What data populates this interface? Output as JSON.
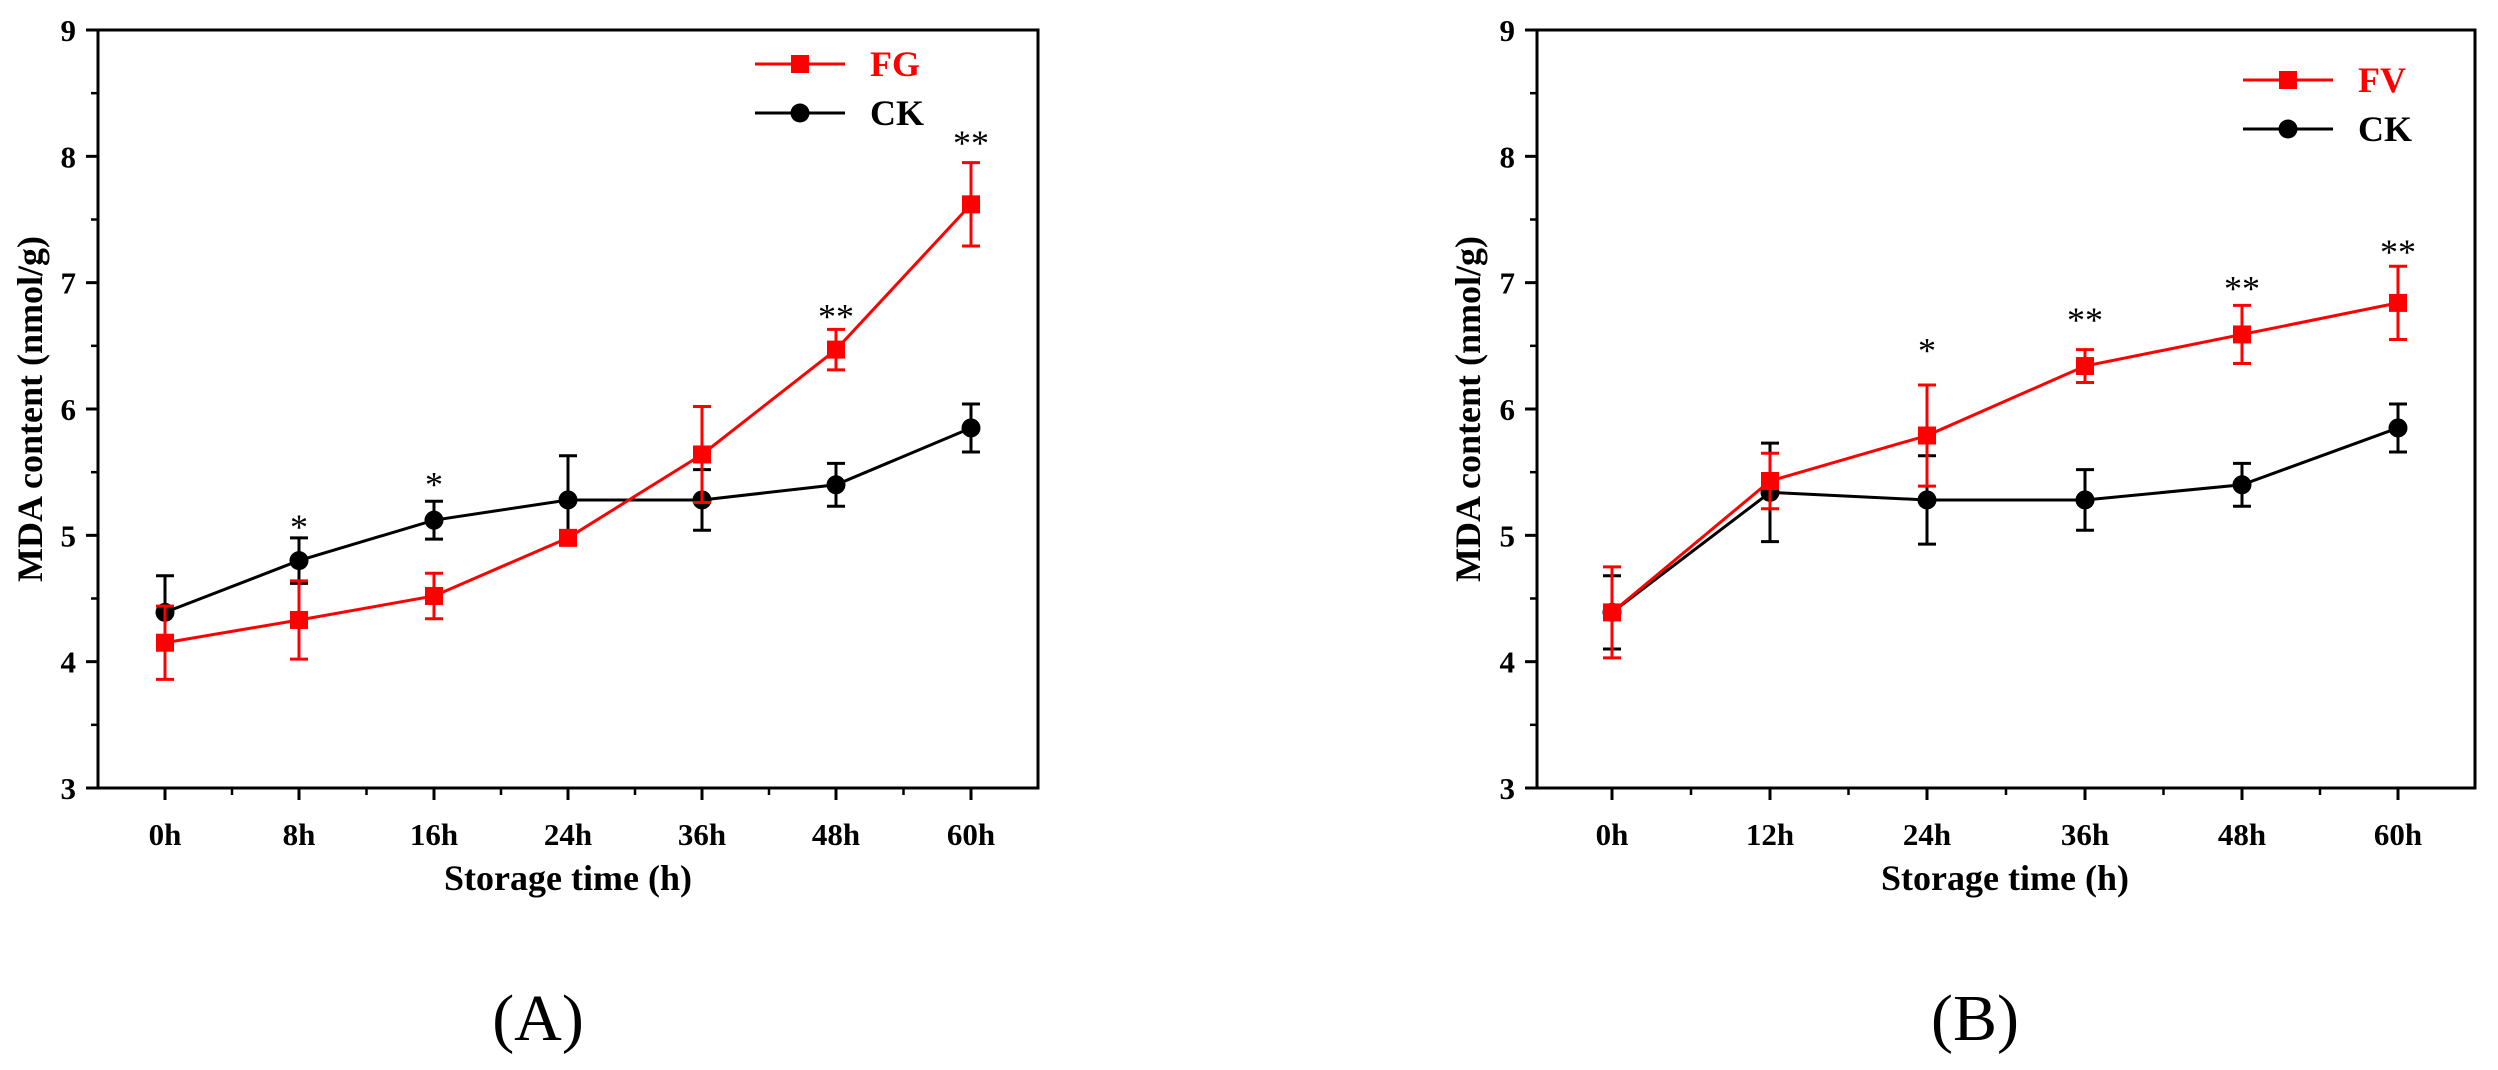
{
  "chart_data": [
    {
      "type": "line",
      "panel_label": "(A)",
      "xlabel": "Storage time (h)",
      "ylabel": "MDA content (nmol/g)",
      "ylim": [
        3,
        9
      ],
      "yticks": [
        "3",
        "4",
        "5",
        "6",
        "7",
        "8",
        "9"
      ],
      "categories": [
        "0h",
        "8h",
        "16h",
        "24h",
        "36h",
        "48h",
        "60h"
      ],
      "legend_position": "top-right",
      "series": [
        {
          "name": "FG",
          "color": "#ff0000",
          "marker": "square",
          "values": [
            4.15,
            4.33,
            4.52,
            4.98,
            5.64,
            6.47,
            7.62
          ],
          "errors": [
            0.29,
            0.31,
            0.18,
            0.05,
            0.38,
            0.16,
            0.33
          ]
        },
        {
          "name": "CK",
          "color": "#000000",
          "marker": "circle",
          "values": [
            4.39,
            4.8,
            5.12,
            5.28,
            5.28,
            5.4,
            5.85
          ],
          "errors": [
            0.29,
            0.18,
            0.15,
            0.35,
            0.24,
            0.17,
            0.19
          ]
        }
      ],
      "annotations": [
        {
          "category": "8h",
          "text": "*",
          "y": 5.08
        },
        {
          "category": "16h",
          "text": "*",
          "y": 5.42
        },
        {
          "category": "48h",
          "text": "**",
          "y": 6.75
        },
        {
          "category": "60h",
          "text": "**",
          "y": 8.12
        }
      ]
    },
    {
      "type": "line",
      "panel_label": "(B)",
      "xlabel": "Storage time (h)",
      "ylabel": "MDA content (nmol/g)",
      "ylim": [
        3,
        9
      ],
      "yticks": [
        "3",
        "4",
        "5",
        "6",
        "7",
        "8",
        "9"
      ],
      "categories": [
        "0h",
        "12h",
        "24h",
        "36h",
        "48h",
        "60h"
      ],
      "legend_position": "top-right",
      "series": [
        {
          "name": "FV",
          "color": "#ff0000",
          "marker": "square",
          "values": [
            4.39,
            5.43,
            5.79,
            6.34,
            6.59,
            6.84
          ],
          "errors": [
            0.36,
            0.22,
            0.4,
            0.13,
            0.23,
            0.29
          ]
        },
        {
          "name": "CK",
          "color": "#000000",
          "marker": "circle",
          "values": [
            4.39,
            5.34,
            5.28,
            5.28,
            5.4,
            5.85
          ],
          "errors": [
            0.29,
            0.39,
            0.35,
            0.24,
            0.17,
            0.19
          ]
        }
      ],
      "annotations": [
        {
          "category": "24h",
          "text": "*",
          "y": 6.48
        },
        {
          "category": "36h",
          "text": "**",
          "y": 6.72
        },
        {
          "category": "48h",
          "text": "**",
          "y": 6.97
        },
        {
          "category": "60h",
          "text": "**",
          "y": 7.26
        }
      ]
    }
  ]
}
